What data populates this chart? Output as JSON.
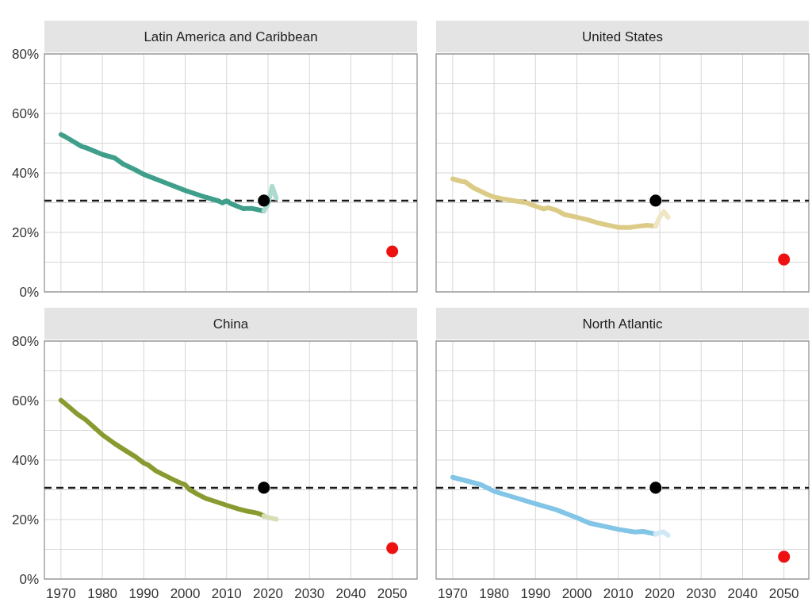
{
  "chart_data": [
    {
      "type": "line",
      "title": "Latin America and Caribbean",
      "xlim": [
        1966,
        2056
      ],
      "xticks": [
        1970,
        1980,
        1990,
        2000,
        2010,
        2020,
        2030,
        2040,
        2050
      ],
      "ylim": [
        0,
        80
      ],
      "yticks": [
        {
          "value": 0,
          "label": "0%"
        },
        {
          "value": 10,
          "label": null
        },
        {
          "value": 20,
          "label": "20%"
        },
        {
          "value": 30,
          "label": null
        },
        {
          "value": 40,
          "label": "40%"
        },
        {
          "value": 50,
          "label": null
        },
        {
          "value": 60,
          "label": "60%"
        },
        {
          "value": 70,
          "label": null
        },
        {
          "value": 80,
          "label": "80%"
        }
      ],
      "grid": true,
      "tick_labels": "y",
      "ref_lines": [
        {
          "axis": "y",
          "value": 30.7,
          "color": "#1a1a1a",
          "line_style": "dashed"
        }
      ],
      "series": [
        {
          "type": "line",
          "color": "#3f9f8b",
          "x": [
            1970,
            1971,
            1975,
            1976,
            1980,
            1983,
            1985,
            1988,
            1990,
            1995,
            2000,
            2005,
            2008,
            2009,
            2010,
            2011,
            2014,
            2016,
            2019
          ],
          "values": [
            52.9,
            52.2,
            48.9,
            48.5,
            46.2,
            45.0,
            43.0,
            41.0,
            39.5,
            36.8,
            34.1,
            31.8,
            30.6,
            29.9,
            30.6,
            29.7,
            28.0,
            28.1,
            27.2
          ]
        },
        {
          "type": "line",
          "color": "#acdacf",
          "x": [
            2019,
            2020,
            2021,
            2022
          ],
          "values": [
            27.2,
            29.5,
            35.5,
            31.5
          ]
        },
        {
          "type": "scatter",
          "marker": "circle",
          "color": "#000000",
          "x": [
            2019
          ],
          "values": [
            30.7
          ]
        },
        {
          "type": "scatter",
          "marker": "circle",
          "color": "#ee1111",
          "x": [
            2050
          ],
          "values": [
            13.6
          ]
        }
      ]
    },
    {
      "type": "line",
      "title": "United States",
      "xlim": [
        1966,
        2056
      ],
      "xticks": [
        1970,
        1980,
        1990,
        2000,
        2010,
        2020,
        2030,
        2040,
        2050
      ],
      "ylim": [
        0,
        80
      ],
      "yticks": [
        0,
        10,
        20,
        30,
        40,
        50,
        60,
        70,
        80
      ],
      "grid": true,
      "tick_labels": false,
      "ref_lines": [
        {
          "axis": "y",
          "value": 30.7,
          "color": "#1a1a1a",
          "line_style": "dashed"
        }
      ],
      "series": [
        {
          "type": "line",
          "color": "#dccb86",
          "x": [
            1970,
            1972,
            1973,
            1975,
            1978,
            1979,
            1980,
            1982,
            1985,
            1988,
            1990,
            1992,
            1993,
            1995,
            1997,
            2000,
            2003,
            2005,
            2008,
            2010,
            2013,
            2015,
            2017,
            2019
          ],
          "values": [
            38.0,
            37.2,
            37.0,
            35.0,
            33.0,
            32.4,
            31.9,
            31.3,
            30.6,
            29.9,
            28.8,
            27.9,
            28.3,
            27.5,
            26.0,
            25.1,
            24.1,
            23.2,
            22.3,
            21.7,
            21.7,
            22.1,
            22.4,
            22.1
          ]
        },
        {
          "type": "line",
          "color": "#efe6c3",
          "x": [
            2019,
            2020,
            2021,
            2022
          ],
          "values": [
            22.1,
            25.2,
            27.0,
            25.1
          ]
        },
        {
          "type": "scatter",
          "marker": "circle",
          "color": "#000000",
          "x": [
            2019
          ],
          "values": [
            30.7
          ]
        },
        {
          "type": "scatter",
          "marker": "circle",
          "color": "#ee1111",
          "x": [
            2050
          ],
          "values": [
            10.9
          ]
        }
      ]
    },
    {
      "type": "line",
      "title": "China",
      "xlim": [
        1966,
        2056
      ],
      "xticks": [
        1970,
        1980,
        1990,
        2000,
        2010,
        2020,
        2030,
        2040,
        2050
      ],
      "ylim": [
        0,
        80
      ],
      "yticks": [
        {
          "value": 0,
          "label": "0%"
        },
        {
          "value": 10,
          "label": null
        },
        {
          "value": 20,
          "label": "20%"
        },
        {
          "value": 30,
          "label": null
        },
        {
          "value": 40,
          "label": "40%"
        },
        {
          "value": 50,
          "label": null
        },
        {
          "value": 60,
          "label": "60%"
        },
        {
          "value": 70,
          "label": null
        },
        {
          "value": 80,
          "label": "80%"
        }
      ],
      "grid": true,
      "ref_lines": [
        {
          "axis": "y",
          "value": 30.7,
          "color": "#1a1a1a",
          "line_style": "dashed"
        }
      ],
      "series": [
        {
          "type": "line",
          "color": "#8a9a30",
          "x": [
            1970,
            1972,
            1974,
            1976,
            1978,
            1980,
            1983,
            1985,
            1988,
            1990,
            1991,
            1993,
            1995,
            1997,
            1999,
            2000,
            2001,
            2003,
            2005,
            2007,
            2010,
            2013,
            2015,
            2017,
            2018,
            2019
          ],
          "values": [
            60.1,
            57.8,
            55.4,
            53.5,
            51.0,
            48.5,
            45.5,
            43.7,
            41.1,
            39.0,
            38.4,
            36.3,
            34.9,
            33.5,
            32.2,
            31.7,
            30.1,
            28.5,
            27.1,
            26.2,
            24.8,
            23.5,
            22.8,
            22.3,
            21.9,
            21.2
          ]
        },
        {
          "type": "line",
          "color": "#d8ddb4",
          "x": [
            2019,
            2020,
            2022
          ],
          "values": [
            21.2,
            20.7,
            20.1
          ]
        },
        {
          "type": "scatter",
          "marker": "circle",
          "color": "#000000",
          "x": [
            2019
          ],
          "values": [
            30.7
          ]
        },
        {
          "type": "scatter",
          "marker": "circle",
          "color": "#ee1111",
          "x": [
            2050
          ],
          "values": [
            10.4
          ]
        }
      ]
    },
    {
      "type": "line",
      "title": "North Atlantic",
      "xlim": [
        1966,
        2056
      ],
      "xticks": [
        1970,
        1980,
        1990,
        2000,
        2010,
        2020,
        2030,
        2040,
        2050
      ],
      "ylim": [
        0,
        80
      ],
      "yticks": [
        0,
        10,
        20,
        30,
        40,
        50,
        60,
        70,
        80
      ],
      "grid": true,
      "tick_labels": "x",
      "ref_lines": [
        {
          "axis": "y",
          "value": 30.7,
          "color": "#1a1a1a",
          "line_style": "dashed"
        }
      ],
      "series": [
        {
          "type": "line",
          "color": "#82c5e6",
          "x": [
            1970,
            1975,
            1977,
            1980,
            1985,
            1990,
            1995,
            2000,
            2003,
            2005,
            2010,
            2014,
            2016,
            2019
          ],
          "values": [
            34.2,
            32.4,
            31.6,
            29.5,
            27.4,
            25.3,
            23.3,
            20.6,
            18.8,
            18.2,
            16.7,
            15.8,
            16.0,
            15.1
          ]
        },
        {
          "type": "line",
          "color": "#cfe8f5",
          "x": [
            2019,
            2020,
            2021,
            2022
          ],
          "values": [
            15.1,
            15.6,
            15.8,
            14.7
          ]
        },
        {
          "type": "scatter",
          "marker": "circle",
          "color": "#000000",
          "x": [
            2019
          ],
          "values": [
            30.7
          ]
        },
        {
          "type": "scatter",
          "marker": "circle",
          "color": "#ee1111",
          "x": [
            2050
          ],
          "values": [
            7.5
          ]
        }
      ]
    }
  ]
}
